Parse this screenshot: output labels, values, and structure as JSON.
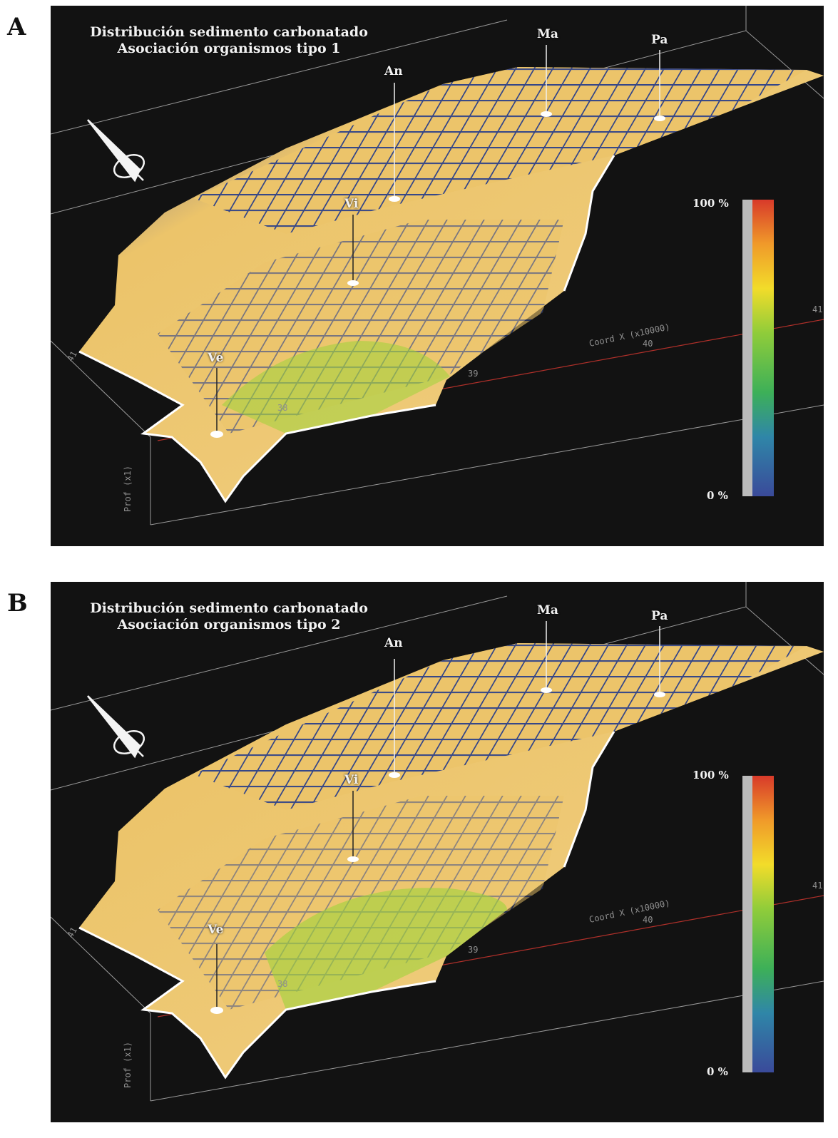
{
  "panels": [
    {
      "letter": "A",
      "title_line1": "Distribución sedimento carbonatado",
      "title_line2": "Asociación organismos tipo 1",
      "sites": [
        "Ma",
        "Pa",
        "An",
        "Vi",
        "Ve"
      ],
      "colorbar": {
        "max_label": "100 %",
        "min_label": "0 %"
      },
      "axis": {
        "x_label": "Coord X (x10000)",
        "x_ticks": [
          "38",
          "39",
          "40",
          "41"
        ],
        "y_label": "Prof (x1)",
        "side_tick": "41"
      }
    },
    {
      "letter": "B",
      "title_line1": "Distribución sedimento carbonatado",
      "title_line2": "Asociación organismos tipo 2",
      "sites": [
        "Ma",
        "Pa",
        "An",
        "Vi",
        "Ve"
      ],
      "colorbar": {
        "max_label": "100 %",
        "min_label": "0 %"
      },
      "axis": {
        "x_label": "Coord X (x10000)",
        "x_ticks": [
          "38",
          "39",
          "40",
          "41"
        ],
        "y_label": "Prof (x1)",
        "side_tick": "41"
      }
    }
  ],
  "colors": {
    "surface": "#ecc46a",
    "low": "#3a4a9a",
    "mid": "#5ab54a",
    "high": "#d83a2a",
    "background": "#121212"
  }
}
